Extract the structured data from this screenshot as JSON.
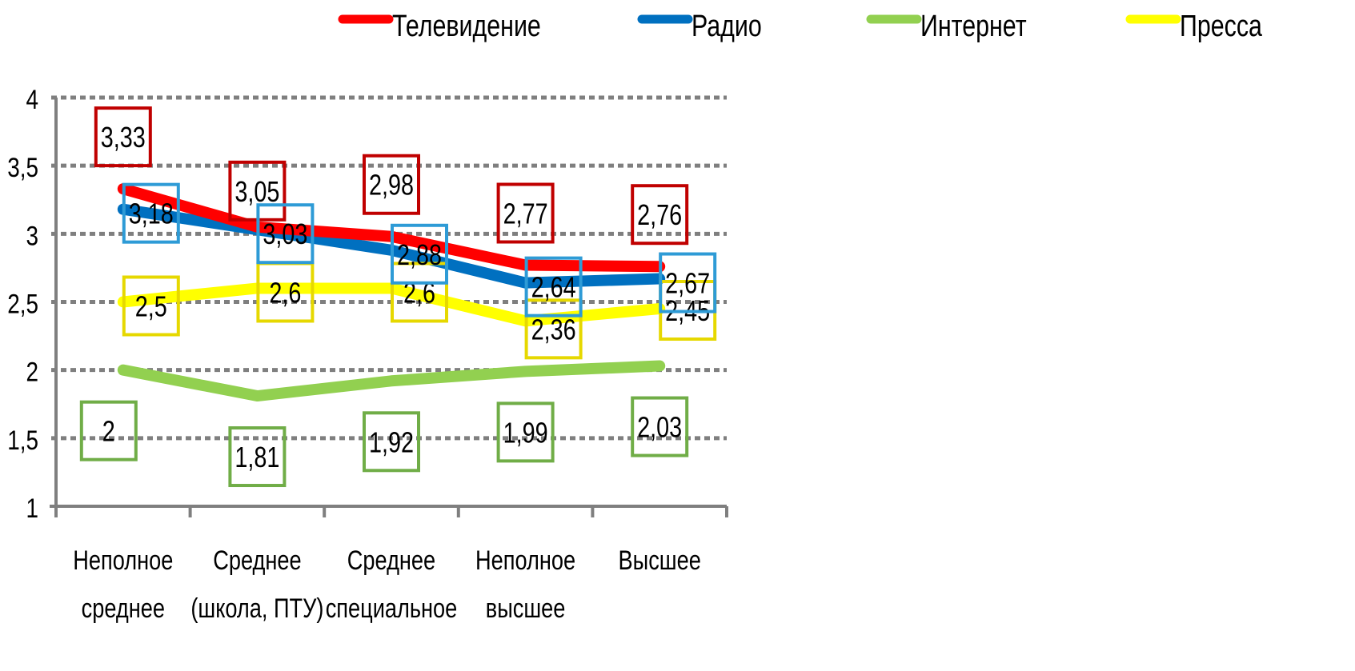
{
  "chart_data": {
    "type": "line",
    "categories": [
      [
        "Неполное",
        "среднее"
      ],
      [
        "Среднее",
        "(школа, ПТУ)"
      ],
      [
        "Среднее",
        "специальное"
      ],
      [
        "Неполное",
        "высшее"
      ],
      [
        "Высшее"
      ]
    ],
    "ylim": [
      1,
      4
    ],
    "yticks": [
      "1",
      "1,5",
      "2",
      "2,5",
      "3",
      "3,5",
      "4"
    ],
    "ytick_values": [
      1,
      1.5,
      2,
      2.5,
      3,
      3.5,
      4
    ],
    "grid": true,
    "legend_position": "top",
    "series": [
      {
        "name": "Телевидение",
        "color": "#ff0000",
        "box_color": "#c00000",
        "values": [
          3.33,
          3.05,
          2.98,
          2.77,
          2.76
        ],
        "labels": [
          "3,33",
          "3,05",
          "2,98",
          "2,77",
          "2,76"
        ]
      },
      {
        "name": "Радио",
        "color": "#0070c0",
        "box_color": "#2e9bd6",
        "values": [
          3.18,
          3.03,
          2.88,
          2.64,
          2.67
        ],
        "labels": [
          "3,18",
          "3,03",
          "2,88",
          "2,64",
          "2,67"
        ]
      },
      {
        "name": "Интернет",
        "color": "#92d050",
        "box_color": "#70ad47",
        "values": [
          2,
          1.81,
          1.92,
          1.99,
          2.03
        ],
        "labels": [
          "2",
          "1,81",
          "1,92",
          "1,99",
          "2,03"
        ]
      },
      {
        "name": "Пресса",
        "color": "#ffff00",
        "box_color": "#e6d800",
        "values": [
          2.5,
          2.6,
          2.6,
          2.36,
          2.45
        ],
        "labels": [
          "2,5",
          "2,6",
          "2,6",
          "2,36",
          "2,45"
        ]
      }
    ]
  }
}
